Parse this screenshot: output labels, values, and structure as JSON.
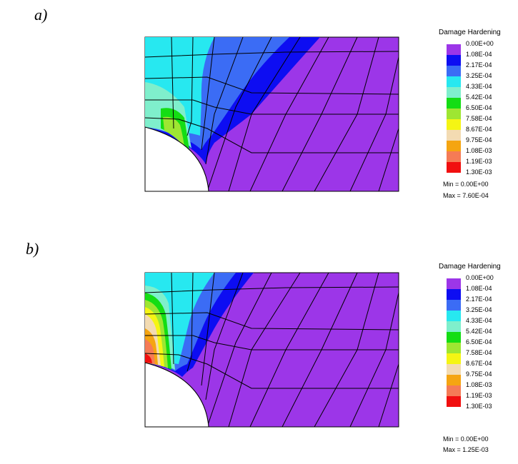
{
  "panels": [
    {
      "label": "a)",
      "legend": {
        "title": "Damage Hardening",
        "levels": [
          "0.00E+00",
          "1.08E-04",
          "2.17E-04",
          "3.25E-04",
          "4.33E-04",
          "5.42E-04",
          "6.50E-04",
          "7.58E-04",
          "8.67E-04",
          "9.75E-04",
          "1.08E-03",
          "1.19E-03",
          "1.30E-03"
        ],
        "min": "Min =  0.00E+00",
        "max": "Max =  7.60E-04"
      }
    },
    {
      "label": "b)",
      "legend": {
        "title": "Damage Hardening",
        "levels": [
          "0.00E+00",
          "1.08E-04",
          "2.17E-04",
          "3.25E-04",
          "4.33E-04",
          "5.42E-04",
          "6.50E-04",
          "7.58E-04",
          "8.67E-04",
          "9.75E-04",
          "1.08E-03",
          "1.19E-03",
          "1.30E-03"
        ],
        "min": "Min =  0.00E+00",
        "max": "Max =  1.25E-03"
      }
    }
  ],
  "colors": {
    "scale": [
      "#9c36e8",
      "#0d0df2",
      "#3b6cf5",
      "#27e8f0",
      "#7fefcc",
      "#14dd14",
      "#9ee632",
      "#f5f514",
      "#f3dbb2",
      "#f5a511",
      "#f57b56",
      "#f10f0f"
    ],
    "mesh_fill": "#9c36e8",
    "mesh_line": "#000000"
  }
}
